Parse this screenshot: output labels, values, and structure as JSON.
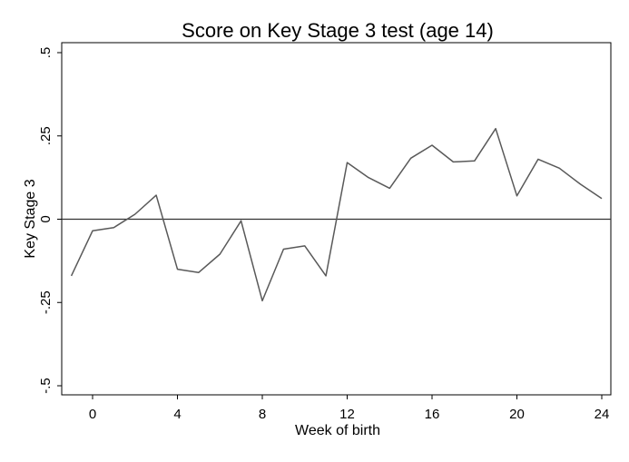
{
  "chart_data": {
    "type": "line",
    "title": "Score on Key Stage 3 test (age 14)",
    "xlabel": "Week of birth",
    "ylabel": "Key Stage 3",
    "xlim": [
      -1,
      24
    ],
    "ylim": [
      -0.5,
      0.5
    ],
    "x_ticks": [
      0,
      4,
      8,
      12,
      16,
      20,
      24
    ],
    "x_tick_labels": [
      "0",
      "4",
      "8",
      "12",
      "16",
      "20",
      "24"
    ],
    "y_ticks": [
      -0.5,
      -0.25,
      0,
      0.25,
      0.5
    ],
    "y_tick_labels": [
      "-.5",
      "-.25",
      "0",
      ".25",
      ".5"
    ],
    "reference_line_y": 0,
    "grid": false,
    "colors": {
      "line": "#595959",
      "axis": "#000000",
      "reference": "#333333"
    },
    "series": [
      {
        "x": [
          -1,
          0,
          1,
          2,
          3,
          4,
          5,
          6,
          7,
          8,
          9,
          10,
          11,
          12,
          13,
          14,
          15,
          16,
          17,
          18,
          19,
          20,
          21,
          22,
          23,
          24
        ],
        "values": [
          -0.17,
          -0.035,
          -0.025,
          0.015,
          0.072,
          -0.15,
          -0.16,
          -0.105,
          -0.005,
          -0.245,
          -0.09,
          -0.08,
          -0.17,
          0.17,
          0.125,
          0.093,
          0.183,
          0.222,
          0.172,
          0.175,
          0.272,
          0.07,
          0.18,
          0.153,
          0.105,
          0.062
        ]
      }
    ]
  }
}
